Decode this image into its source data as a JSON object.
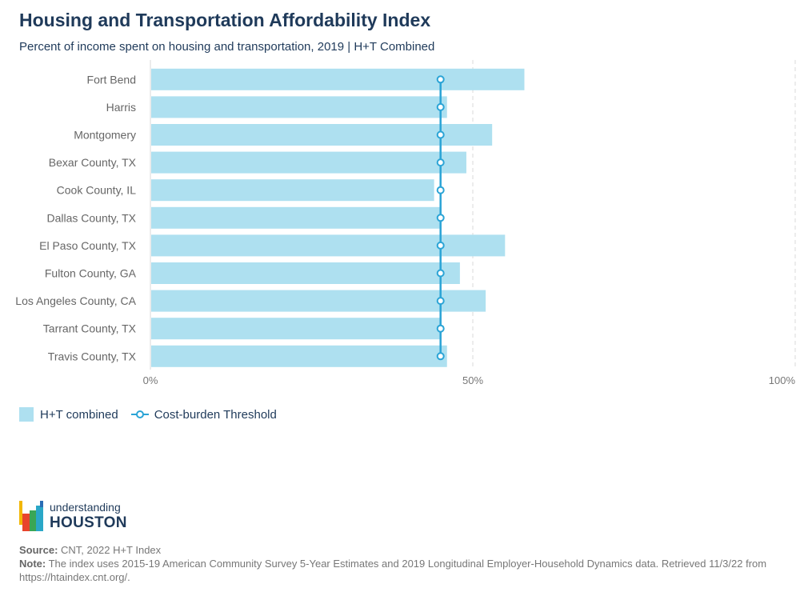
{
  "header": {
    "title": "Housing and Transportation Affordability Index",
    "subtitle": "Percent of income spent on housing and transportation, 2019 | H+T Combined"
  },
  "colors": {
    "bar": "#aee0f0",
    "threshold": "#2ba4d6",
    "grid": "#d9d9d9"
  },
  "chart_data": {
    "type": "bar",
    "orientation": "horizontal",
    "categories": [
      "Fort Bend",
      "Harris",
      "Montgomery",
      "Bexar County, TX",
      "Cook County, IL",
      "Dallas County, TX",
      "El Paso County, TX",
      "Fulton County, GA",
      "Los Angeles County, CA",
      "Tarrant County, TX",
      "Travis County, TX"
    ],
    "series": [
      {
        "name": "H+T combined",
        "type": "bar",
        "values": [
          58,
          46,
          53,
          49,
          44,
          45,
          55,
          48,
          52,
          45,
          46
        ]
      },
      {
        "name": "Cost-burden Threshold",
        "type": "line",
        "values": [
          45,
          45,
          45,
          45,
          45,
          45,
          45,
          45,
          45,
          45,
          45
        ]
      }
    ],
    "xlim": [
      0,
      100
    ],
    "xticks": [
      0,
      50,
      100
    ],
    "xtick_labels": [
      "0%",
      "50%",
      "100%"
    ],
    "grid": "vertical dashed",
    "legend_position": "bottom-left"
  },
  "branding": {
    "logo_line1": "understanding",
    "logo_line2": "HOUSTON"
  },
  "footer": {
    "source_label": "Source:",
    "source_text": "CNT, 2022 H+T Index",
    "note_label": "Note:",
    "note_text": "The index uses 2015-19 American Community Survey 5-Year Estimates and 2019 Longitudinal Employer-Household Dynamics data. Retrieved 11/3/22 from https://htaindex.cnt.org/."
  }
}
